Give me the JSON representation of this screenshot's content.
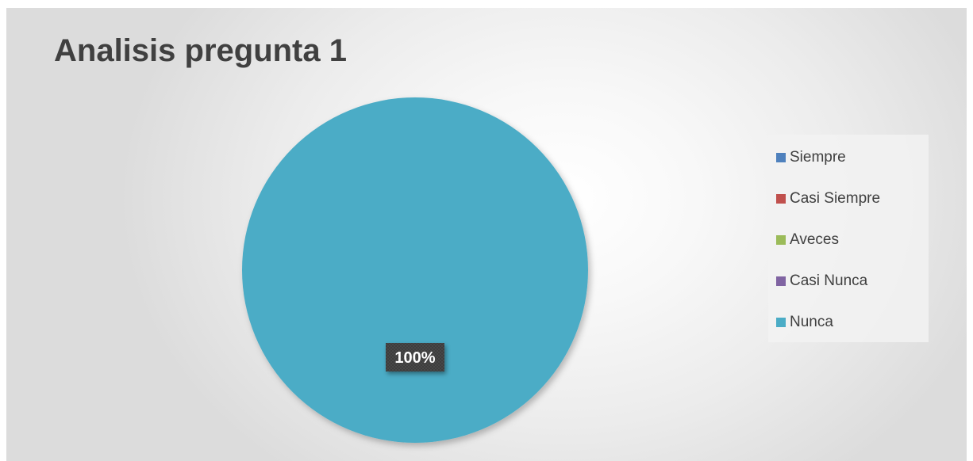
{
  "chart_data": {
    "type": "pie",
    "title": "Analisis pregunta 1",
    "categories": [
      "Siempre",
      "Casi Siempre",
      "Aveces",
      "Casi Nunca",
      "Nunca"
    ],
    "values": [
      0,
      0,
      0,
      0,
      100
    ],
    "colors": [
      "#4f81bd",
      "#c0504d",
      "#9bbb59",
      "#8064a2",
      "#4bacc6"
    ],
    "data_labels": [
      "",
      "",
      "",
      "",
      "100%"
    ],
    "legend_position": "right"
  }
}
